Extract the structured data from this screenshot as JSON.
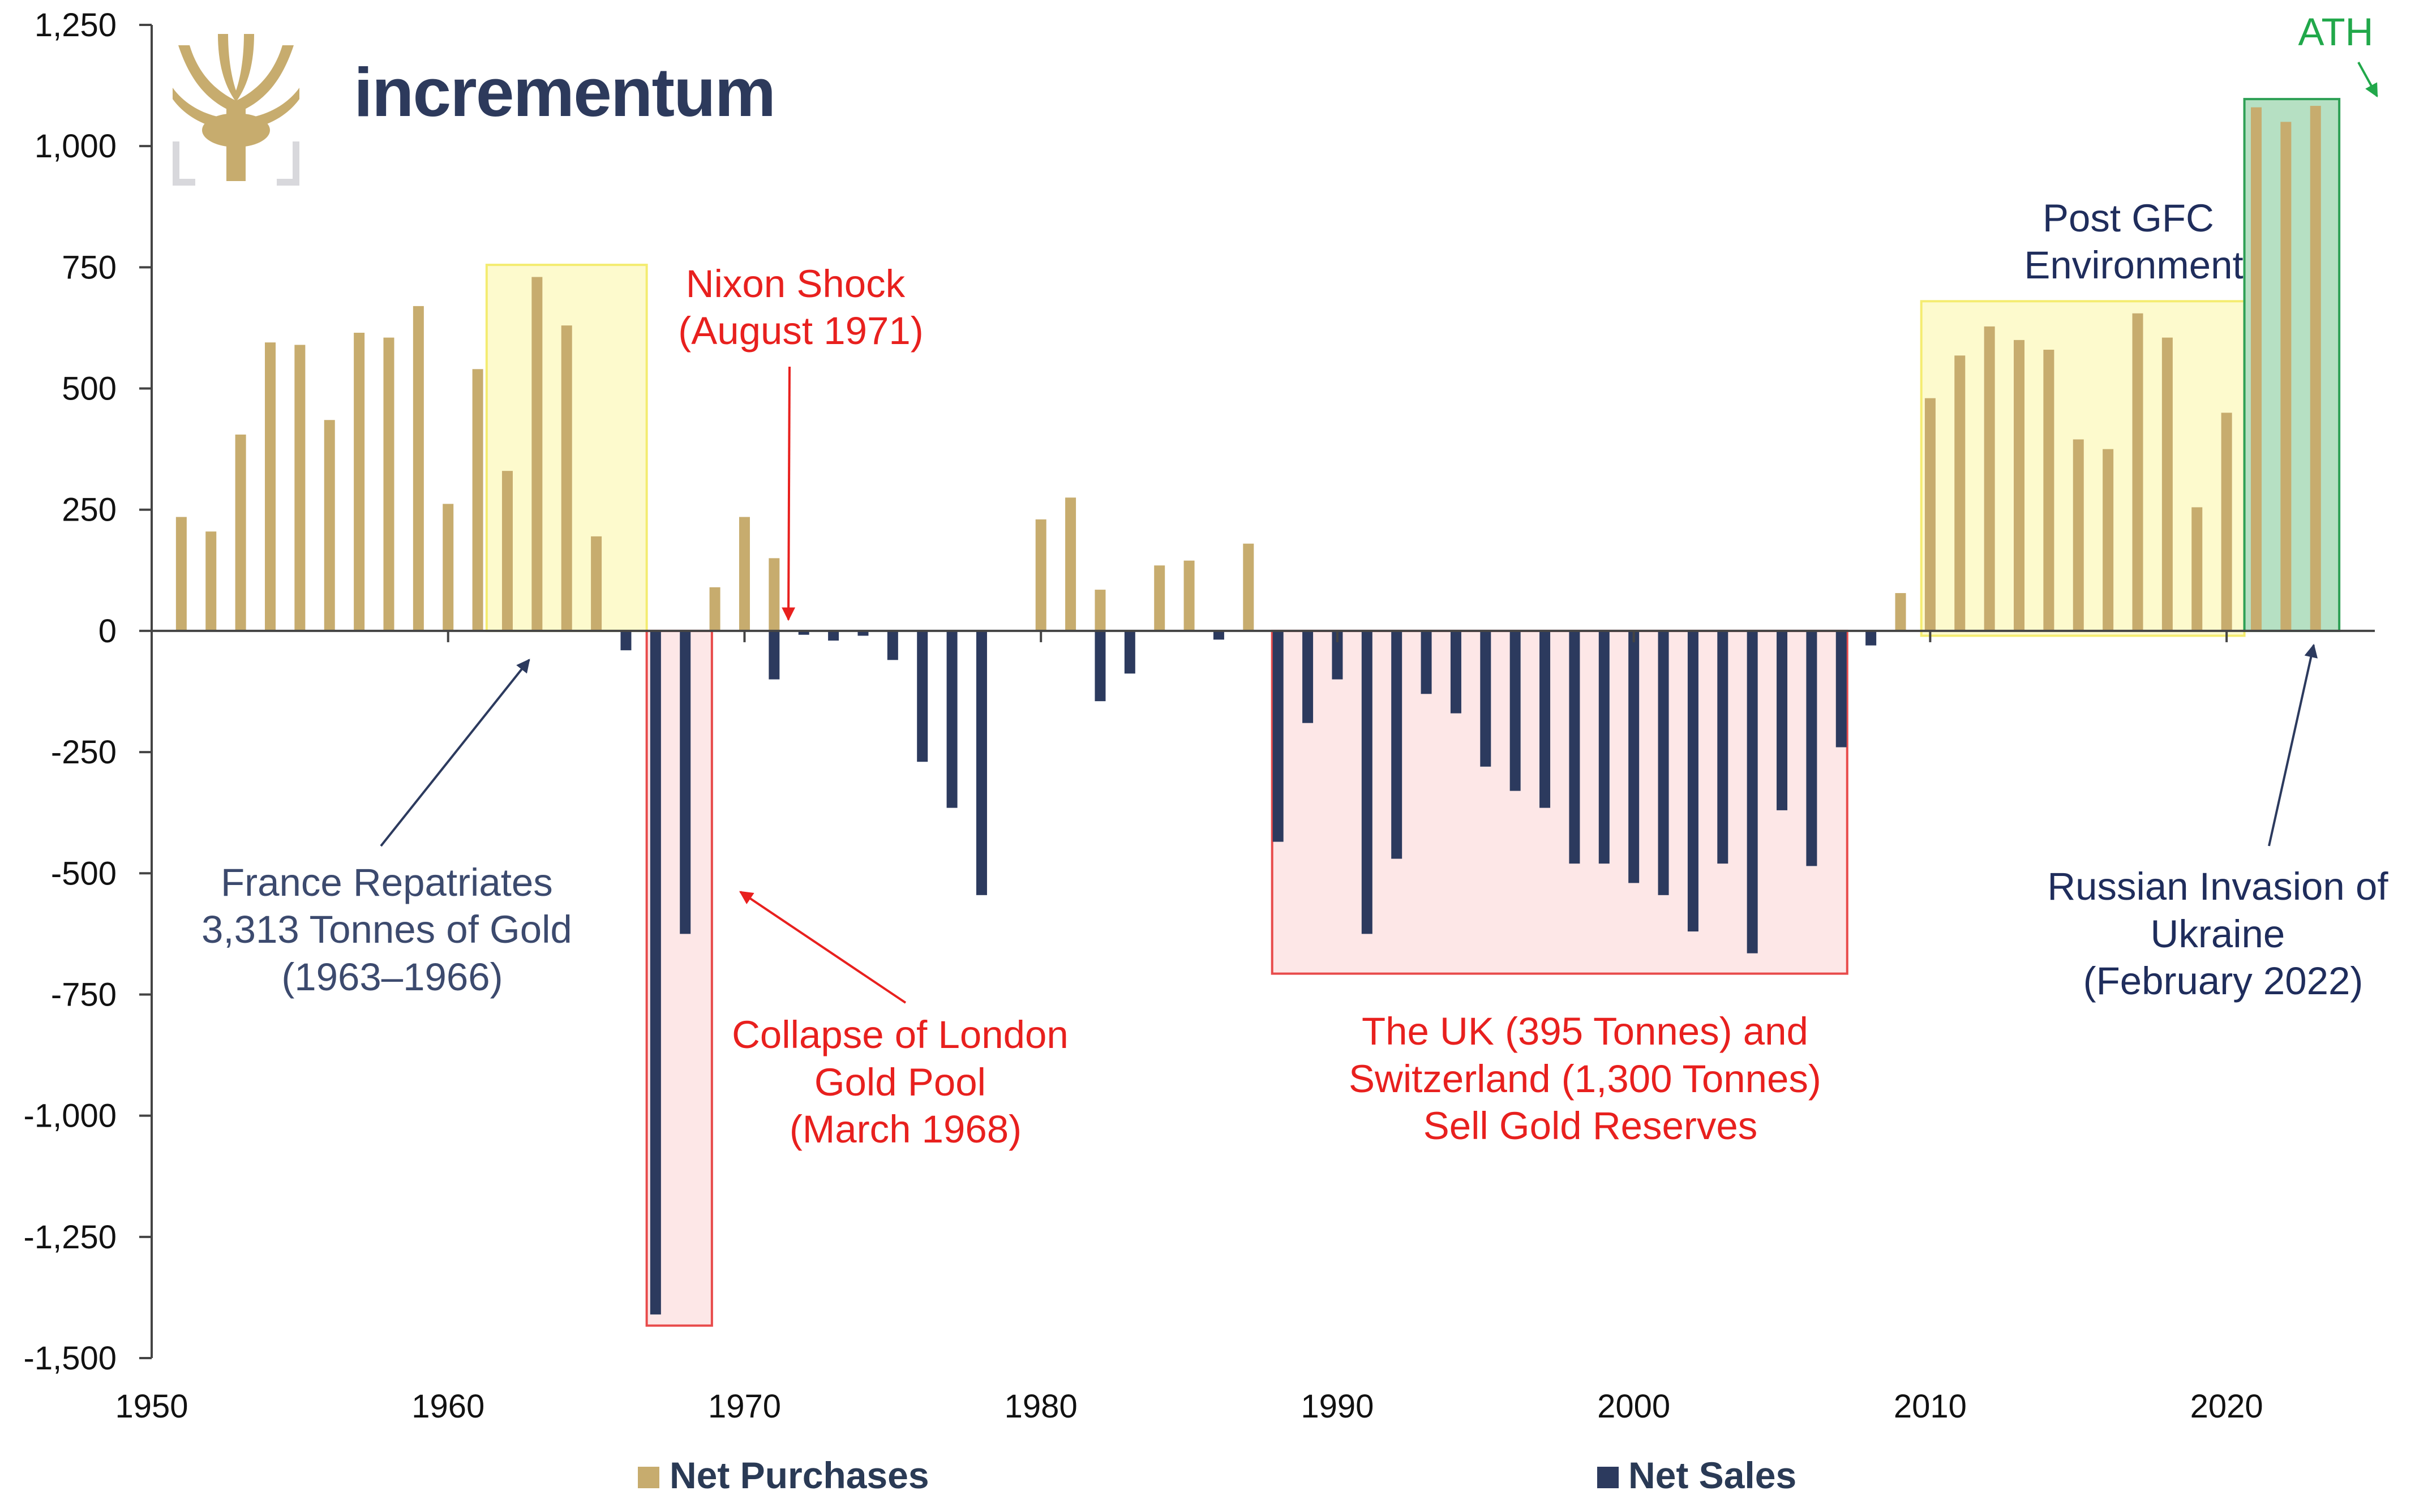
{
  "brand": {
    "name": "incrementum",
    "logo_icon": "tree-logo-icon"
  },
  "chart_data": {
    "type": "bar",
    "title": "",
    "xlabel": "",
    "ylabel": "",
    "xlim": [
      1950,
      2025
    ],
    "ylim": [
      -1500,
      1250
    ],
    "y_ticks": [
      1250,
      1000,
      750,
      500,
      250,
      0,
      -250,
      -500,
      -750,
      -1000,
      -1250,
      -1500
    ],
    "y_tick_labels": [
      "1,250",
      "1,000",
      "750",
      "500",
      "250",
      "0",
      "-250",
      "-500",
      "-750",
      "-1,000",
      "-1,250",
      "-1,500"
    ],
    "x_ticks": [
      1950,
      1960,
      1970,
      1980,
      1990,
      2000,
      2010,
      2020
    ],
    "x_tick_labels": [
      "1950",
      "1960",
      "1970",
      "1980",
      "1990",
      "2000",
      "2010",
      "2020"
    ],
    "grid": false,
    "legend_position": "bottom",
    "colors": {
      "purchases": "#c7ac6e",
      "sales": "#2c3a5e"
    },
    "series": [
      {
        "name": "Net Purchases",
        "color": "#c7ac6e",
        "points": [
          [
            1951,
            235
          ],
          [
            1952,
            205
          ],
          [
            1953,
            405
          ],
          [
            1954,
            595
          ],
          [
            1955,
            590
          ],
          [
            1956,
            435
          ],
          [
            1957,
            615
          ],
          [
            1958,
            605
          ],
          [
            1959,
            670
          ],
          [
            1960,
            262
          ],
          [
            1961,
            540
          ],
          [
            1962,
            330
          ],
          [
            1963,
            730
          ],
          [
            1964,
            630
          ],
          [
            1965,
            195
          ],
          [
            1969,
            90
          ],
          [
            1970,
            235
          ],
          [
            1971,
            150
          ],
          [
            1980,
            230
          ],
          [
            1981,
            275
          ],
          [
            1982,
            85
          ],
          [
            1984,
            135
          ],
          [
            1985,
            145
          ],
          [
            1987,
            180
          ],
          [
            2009,
            78
          ],
          [
            2010,
            480
          ],
          [
            2011,
            568
          ],
          [
            2012,
            628
          ],
          [
            2013,
            600
          ],
          [
            2014,
            580
          ],
          [
            2015,
            395
          ],
          [
            2016,
            375
          ],
          [
            2017,
            655
          ],
          [
            2018,
            605
          ],
          [
            2019,
            255
          ],
          [
            2020,
            450
          ],
          [
            2021,
            1080
          ],
          [
            2022,
            1050
          ],
          [
            2023,
            1083
          ]
        ]
      },
      {
        "name": "Net Sales",
        "color": "#2c3a5e",
        "points": [
          [
            1966,
            -40
          ],
          [
            1967,
            -1410
          ],
          [
            1968,
            -625
          ],
          [
            1971,
            -100
          ],
          [
            1972,
            -8
          ],
          [
            1973,
            -20
          ],
          [
            1974,
            -10
          ],
          [
            1975,
            -60
          ],
          [
            1976,
            -270
          ],
          [
            1977,
            -365
          ],
          [
            1978,
            -545
          ],
          [
            1982,
            -145
          ],
          [
            1983,
            -88
          ],
          [
            1986,
            -18
          ],
          [
            1988,
            -435
          ],
          [
            1989,
            -190
          ],
          [
            1990,
            -100
          ],
          [
            1991,
            -625
          ],
          [
            1992,
            -470
          ],
          [
            1993,
            -130
          ],
          [
            1994,
            -170
          ],
          [
            1995,
            -280
          ],
          [
            1996,
            -330
          ],
          [
            1997,
            -365
          ],
          [
            1998,
            -480
          ],
          [
            1999,
            -480
          ],
          [
            2000,
            -520
          ],
          [
            2001,
            -545
          ],
          [
            2002,
            -620
          ],
          [
            2003,
            -480
          ],
          [
            2004,
            -665
          ],
          [
            2005,
            -370
          ],
          [
            2006,
            -485
          ],
          [
            2007,
            -240
          ],
          [
            2008,
            -30
          ]
        ]
      }
    ],
    "highlight_boxes": [
      {
        "label": "France period",
        "x_from": 1961.3,
        "x_to": 1966.7,
        "y_from": 0,
        "y_to": 755,
        "fill": "#fdf9c4",
        "stroke": "#f4ec70"
      },
      {
        "label": "London Gold Pool",
        "x_from": 1966.7,
        "x_to": 1968.9,
        "y_from": -1433,
        "y_to": 0,
        "fill": "#fde3e3",
        "stroke": "#e84b4b"
      },
      {
        "label": "UK and Switzerland",
        "x_from": 1987.8,
        "x_to": 2007.2,
        "y_from": -707,
        "y_to": 0,
        "fill": "#fde3e3",
        "stroke": "#e84b4b"
      },
      {
        "label": "Post GFC",
        "x_from": 2009.7,
        "x_to": 2020.6,
        "y_from": -10,
        "y_to": 680,
        "fill": "#fdf9c4",
        "stroke": "#f4ec70"
      },
      {
        "label": "ATH",
        "x_from": 2020.6,
        "x_to": 2023.8,
        "y_from": 0,
        "y_to": 1097,
        "fill": "#a9dbb8",
        "stroke": "#2ea055"
      }
    ],
    "annotations": [
      {
        "lines": [
          "France Repatriates",
          "3,313 Tonnes of Gold",
          "(1963–1966)"
        ],
        "color": "#3c4a6e"
      },
      {
        "lines": [
          "Nixon Shock",
          "(August 1971)"
        ],
        "color": "#e8201e"
      },
      {
        "lines": [
          "Collapse of London",
          "Gold Pool",
          "(March 1968)"
        ],
        "color": "#e8201e"
      },
      {
        "lines": [
          "The UK (395 Tonnes) and",
          "Switzerland (1,300 Tonnes)",
          "Sell Gold Reserves"
        ],
        "color": "#e8201e"
      },
      {
        "lines": [
          "Post GFC",
          "Environment"
        ],
        "color": "#1f2d5c"
      },
      {
        "lines": [
          "Russian Invasion of",
          "Ukraine",
          "(February 2022)"
        ],
        "color": "#1f2d5c"
      },
      {
        "lines": [
          "ATH"
        ],
        "color": "#21a84a"
      }
    ]
  },
  "legend": [
    {
      "label": "Net Purchases",
      "color": "#c7ac6e"
    },
    {
      "label": "Net Sales",
      "color": "#2c3a5e"
    }
  ]
}
